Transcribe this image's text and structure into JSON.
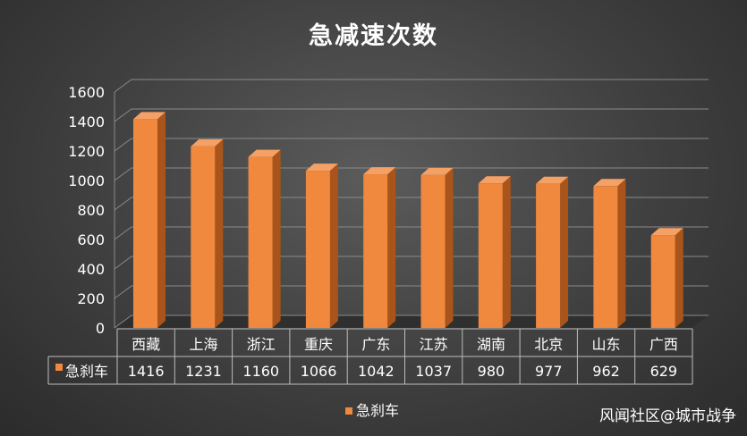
{
  "chart_data": {
    "type": "bar",
    "title": "急减速次数",
    "categories": [
      "西藏",
      "上海",
      "浙江",
      "重庆",
      "广东",
      "江苏",
      "湖南",
      "北京",
      "山东",
      "广西"
    ],
    "series": [
      {
        "name": "急刹车",
        "values": [
          1416,
          1231,
          1160,
          1066,
          1042,
          1037,
          980,
          977,
          962,
          629
        ]
      }
    ],
    "yticks": [
      "0",
      "200",
      "400",
      "600",
      "800",
      "1000",
      "1200",
      "1400",
      "1600"
    ],
    "ylim": [
      0,
      1600
    ],
    "grid": true,
    "legend": "bottom",
    "data_table": true,
    "colors": {
      "bar_front": "#f0883e",
      "bar_side": "#a9541a",
      "bar_top": "#f5a065",
      "grid": "#8a8a8a",
      "text": "#ffffff"
    }
  },
  "watermark": "风闻社区@城市战争"
}
